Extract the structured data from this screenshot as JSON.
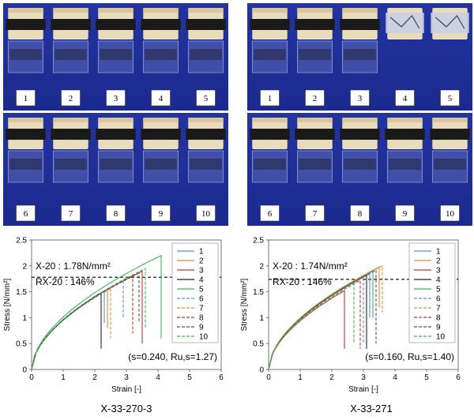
{
  "photos": [
    {
      "labels": [
        "1",
        "2",
        "3",
        "4",
        "5"
      ],
      "broken": []
    },
    {
      "labels": [
        "1",
        "2",
        "3",
        "4",
        "5"
      ],
      "broken": [
        4,
        5
      ]
    },
    {
      "labels": [
        "6",
        "7",
        "8",
        "9",
        "10"
      ],
      "broken": []
    },
    {
      "labels": [
        "6",
        "7",
        "8",
        "9",
        "10"
      ],
      "broken": []
    }
  ],
  "captions": {
    "left": "X-33-270-3",
    "right": "X-33-271"
  },
  "colors": {
    "photo_bg": "#1d2d9c",
    "series": [
      "#5b8fd0",
      "#e58a3a",
      "#c0392b",
      "#222222",
      "#3cb65a",
      "#5b8fd0",
      "#e58a3a",
      "#c0392b",
      "#555555",
      "#3cb65a"
    ]
  },
  "chart_data": [
    {
      "type": "line",
      "title": "",
      "xlabel": "Strain [-]",
      "ylabel": "Stress [N/mm²]",
      "xlim": [
        0,
        6
      ],
      "ylim": [
        0,
        2.5
      ],
      "xticks": [
        "0",
        "1",
        "2",
        "3",
        "4",
        "5",
        "6"
      ],
      "yticks": [
        "0",
        "0.5",
        "1",
        "1.5",
        "2",
        "2.5"
      ],
      "annotation_x": "X-20 : 1.78N/mm²",
      "annotation_rx": "RX-20 : 146%",
      "annotation_params": "(s=0.240, Ru,s=1.27)",
      "reference_stress": 1.78,
      "legend_position": "upper-right",
      "series": [
        {
          "name": "1",
          "dash": false,
          "x_fail": 2.3,
          "y_peak": 1.52,
          "y_end": 0.9
        },
        {
          "name": "2",
          "dash": false,
          "x_fail": 2.4,
          "y_peak": 1.55,
          "y_end": 0.8
        },
        {
          "name": "3",
          "dash": false,
          "x_fail": 3.5,
          "y_peak": 1.9,
          "y_end": 0.5
        },
        {
          "name": "4",
          "dash": false,
          "x_fail": 2.2,
          "y_peak": 1.48,
          "y_end": 0.4
        },
        {
          "name": "5",
          "dash": false,
          "x_fail": 4.1,
          "y_peak": 2.2,
          "y_end": 0.6
        },
        {
          "name": "6",
          "dash": true,
          "x_fail": 2.9,
          "y_peak": 1.72,
          "y_end": 1.0
        },
        {
          "name": "7",
          "dash": true,
          "x_fail": 2.5,
          "y_peak": 1.58,
          "y_end": 0.6
        },
        {
          "name": "8",
          "dash": true,
          "x_fail": 3.2,
          "y_peak": 1.82,
          "y_end": 0.7
        },
        {
          "name": "9",
          "dash": true,
          "x_fail": 3.4,
          "y_peak": 1.86,
          "y_end": 0.9
        },
        {
          "name": "10",
          "dash": true,
          "x_fail": 3.6,
          "y_peak": 1.95,
          "y_end": 0.8
        }
      ]
    },
    {
      "type": "line",
      "title": "",
      "xlabel": "Strain [-]",
      "ylabel": "Stress [N/mm²]",
      "xlim": [
        0,
        6
      ],
      "ylim": [
        0,
        2.5
      ],
      "xticks": [
        "0",
        "1",
        "2",
        "3",
        "4",
        "5",
        "6"
      ],
      "yticks": [
        "0",
        "0.5",
        "1",
        "1.5",
        "2",
        "2.5"
      ],
      "annotation_x": "X-20 : 1.74N/mm²",
      "annotation_rx": "RX-20 : 146%",
      "annotation_params": "(s=0.160, Ru,s=1.40)",
      "reference_stress": 1.74,
      "legend_position": "upper-right",
      "series": [
        {
          "name": "1",
          "dash": false,
          "x_fail": 3.2,
          "y_peak": 1.85,
          "y_end": 1.0
        },
        {
          "name": "2",
          "dash": false,
          "x_fail": 3.5,
          "y_peak": 1.98,
          "y_end": 1.2
        },
        {
          "name": "3",
          "dash": false,
          "x_fail": 2.4,
          "y_peak": 1.52,
          "y_end": 0.4
        },
        {
          "name": "4",
          "dash": false,
          "x_fail": 3.1,
          "y_peak": 1.82,
          "y_end": 0.4
        },
        {
          "name": "5",
          "dash": false,
          "x_fail": 3.3,
          "y_peak": 1.9,
          "y_end": 1.0
        },
        {
          "name": "6",
          "dash": true,
          "x_fail": 3.0,
          "y_peak": 1.78,
          "y_end": 0.5
        },
        {
          "name": "7",
          "dash": true,
          "x_fail": 3.6,
          "y_peak": 2.0,
          "y_end": 1.1
        },
        {
          "name": "8",
          "dash": true,
          "x_fail": 2.9,
          "y_peak": 1.72,
          "y_end": 0.4
        },
        {
          "name": "9",
          "dash": true,
          "x_fail": 3.4,
          "y_peak": 1.92,
          "y_end": 0.5
        },
        {
          "name": "10",
          "dash": true,
          "x_fail": 2.7,
          "y_peak": 1.65,
          "y_end": 0.5
        }
      ]
    }
  ]
}
